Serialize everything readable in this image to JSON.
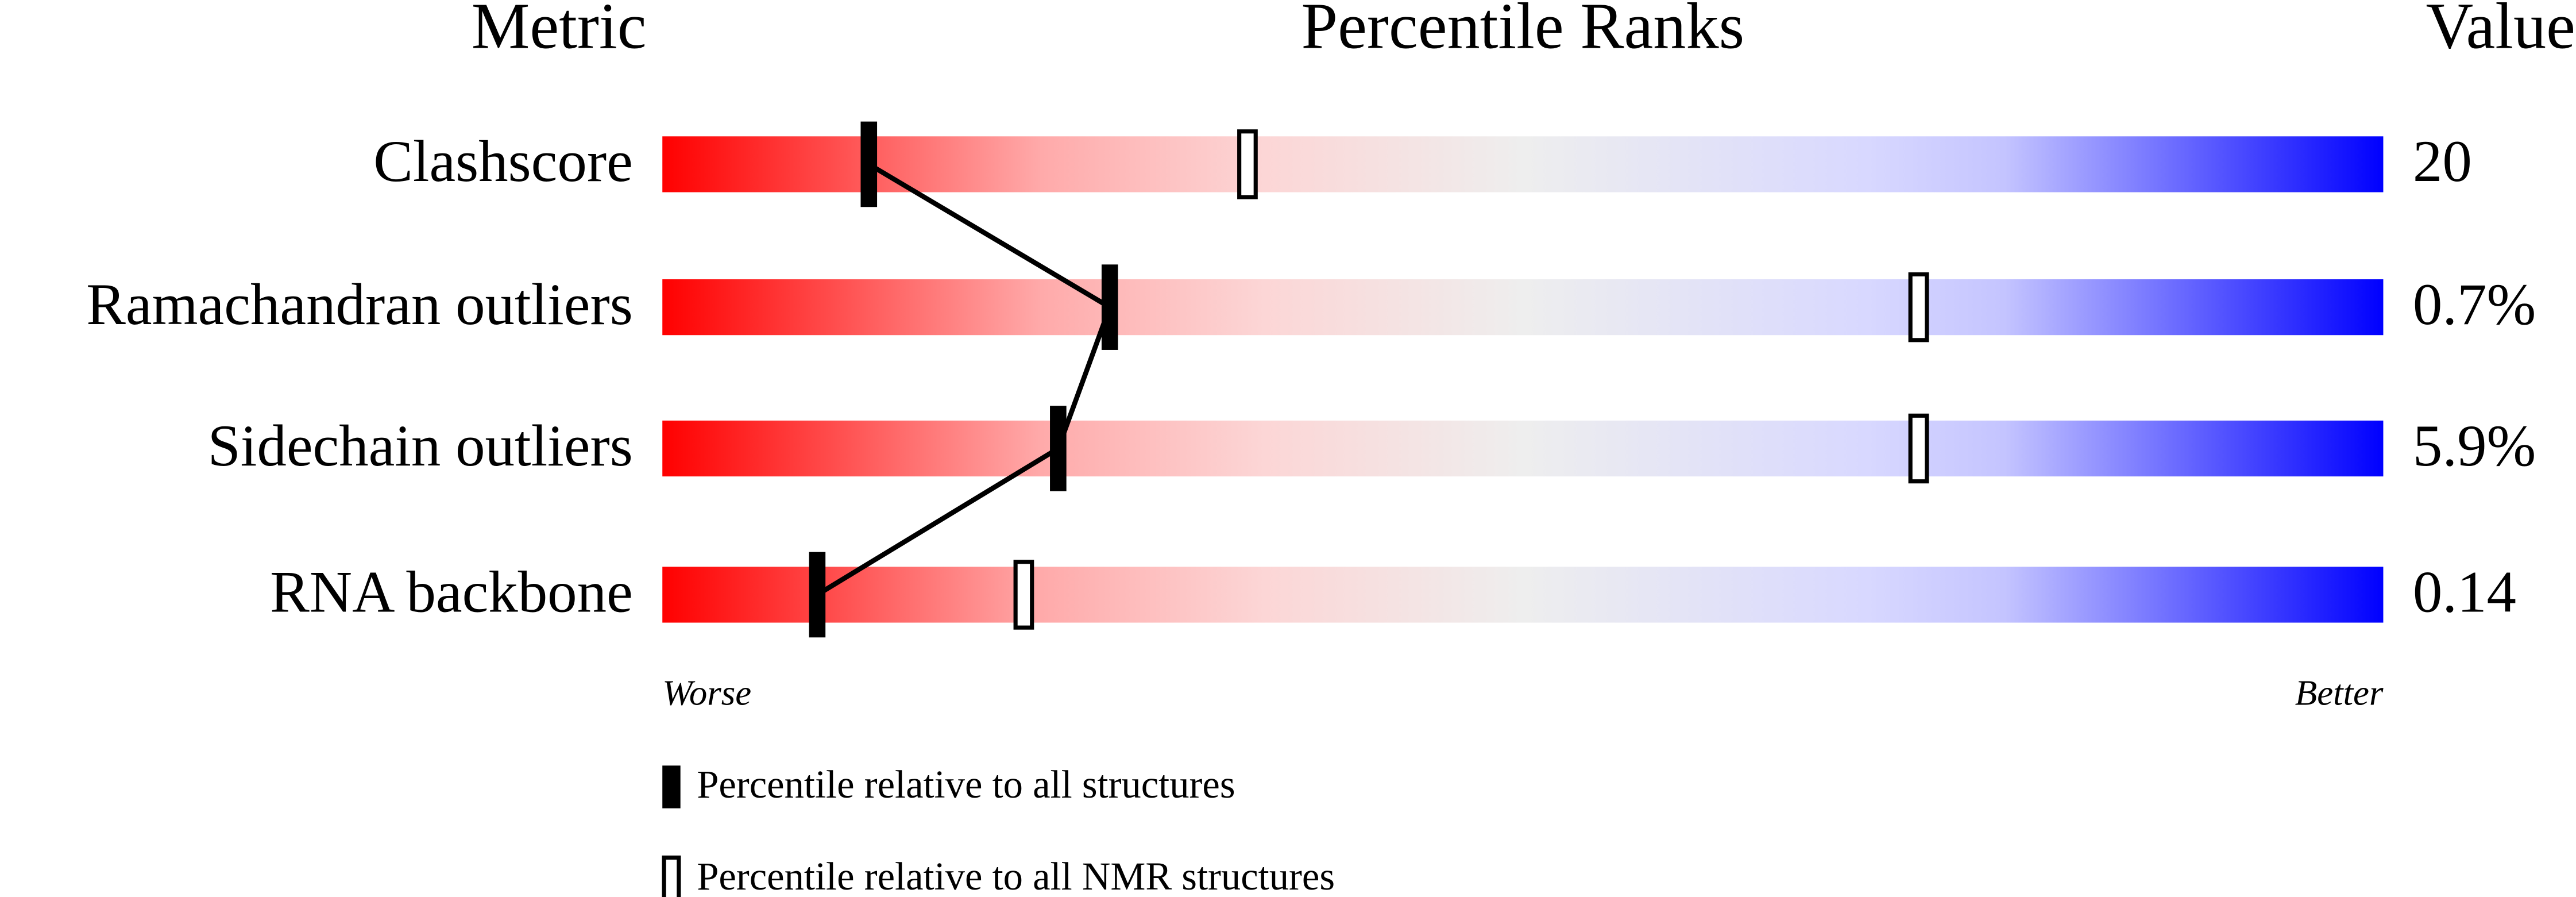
{
  "chart_data": {
    "type": "slider",
    "headers": {
      "metric": "Metric",
      "ranks": "Percentile Ranks",
      "value": "Value"
    },
    "categories": [
      "Clashscore",
      "Ramachandran outliers",
      "Sidechain outliers",
      "RNA backbone"
    ],
    "value_labels": [
      "20",
      "0.7%",
      "5.9%",
      "0.14"
    ],
    "series": [
      {
        "name": "Percentile relative to all structures",
        "color": "#000000",
        "values": [
          12,
          26,
          23,
          9
        ]
      },
      {
        "name": "Percentile relative to all NMR structures",
        "color": "#000000",
        "values": [
          34,
          73,
          73,
          21
        ]
      }
    ],
    "xlim": [
      0,
      100
    ],
    "x_end_labels": [
      "Worse",
      "Better"
    ]
  }
}
